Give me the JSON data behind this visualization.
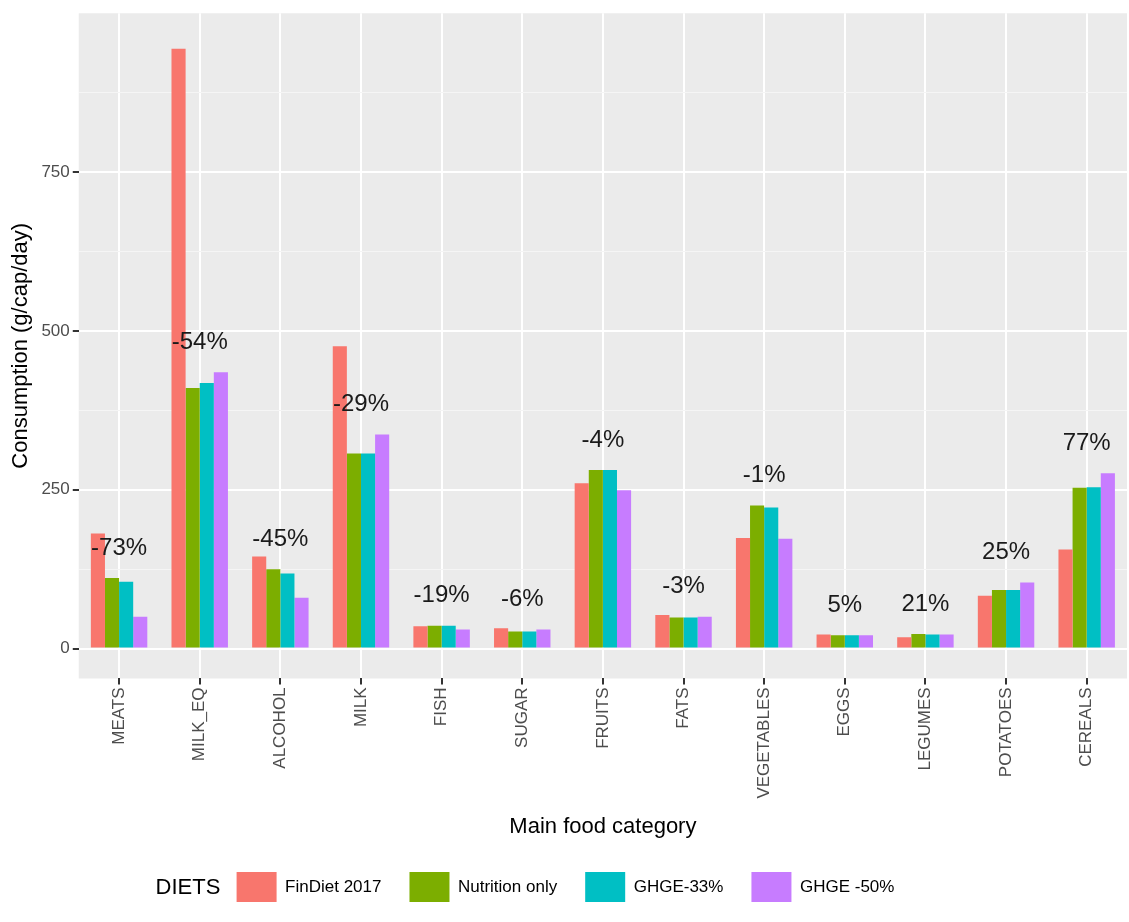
{
  "chart_data": {
    "type": "bar",
    "xlabel": "Main food category",
    "ylabel": "Consumption (g/cap/day)",
    "legend_title": "DIETS",
    "legend": "bottom",
    "grid": true,
    "categories": [
      "MEATS",
      "MILK_EQ",
      "ALCOHOL",
      "MILK",
      "FISH",
      "SUGAR",
      "FRUITS",
      "FATS",
      "VEGETABLES",
      "EGGS",
      "LEGUMES",
      "POTATOES",
      "CEREALS"
    ],
    "series": [
      {
        "name": "FinDiet 2017",
        "color": "#f8766d",
        "values": [
          181,
          944,
          145,
          476,
          35,
          32,
          260,
          53,
          174,
          22,
          18,
          83,
          156
        ]
      },
      {
        "name": "Nutrition only",
        "color": "#7cae00",
        "values": [
          111,
          410,
          125,
          307,
          36,
          27,
          281,
          49,
          225,
          21,
          23,
          92,
          253
        ]
      },
      {
        "name": "GHGE-33%",
        "color": "#00bfc4",
        "values": [
          105,
          418,
          118,
          307,
          36,
          27,
          281,
          49,
          222,
          21,
          22,
          92,
          254
        ]
      },
      {
        "name": "GHGE -50%",
        "color": "#c77cff",
        "values": [
          50,
          435,
          80,
          337,
          30,
          30,
          249,
          50,
          173,
          21,
          22,
          104,
          276
        ]
      }
    ],
    "ylim": [
      -47,
      1000
    ],
    "yticks": [
      0,
      {
        "value": 125,
        "label": null
      },
      250,
      {
        "value": 375,
        "label": null
      },
      500,
      {
        "value": 625,
        "label": null
      },
      750,
      {
        "value": 875,
        "label": null
      }
    ],
    "annotations": [
      "-73%",
      "-54%",
      "-45%",
      "-29%",
      "-19%",
      "-6%",
      "-4%",
      "-3%",
      "-1%",
      "5%",
      "21%",
      "25%",
      "77%"
    ]
  }
}
